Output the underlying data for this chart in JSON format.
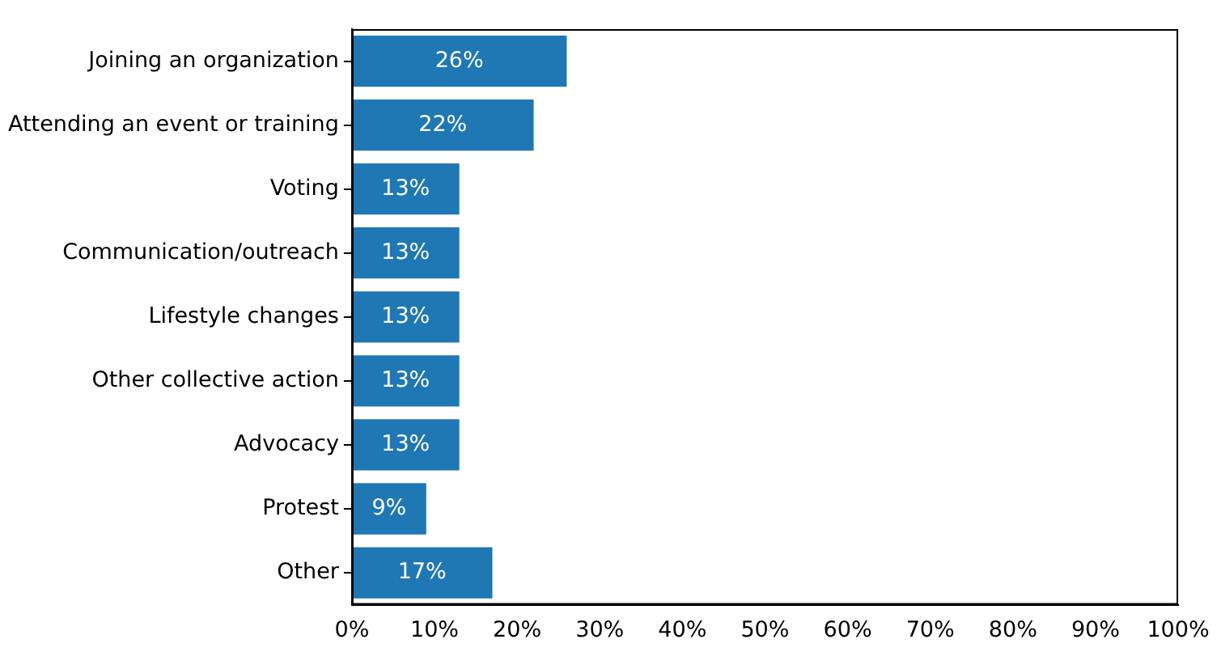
{
  "chart_data": {
    "type": "bar",
    "orientation": "horizontal",
    "categories": [
      "Joining an organization",
      "Attending an event or training",
      "Voting",
      "Communication/outreach",
      "Lifestyle changes",
      "Other collective action",
      "Advocacy",
      "Protest",
      "Other"
    ],
    "values": [
      26,
      22,
      13,
      13,
      13,
      13,
      13,
      9,
      17
    ],
    "value_labels": [
      "26%",
      "22%",
      "13%",
      "13%",
      "13%",
      "13%",
      "13%",
      "9%",
      "17%"
    ],
    "color": "#1f77b4",
    "xlim": [
      0,
      100
    ],
    "xticks": [
      {
        "value": 0,
        "label": "0%"
      },
      {
        "value": 10,
        "label": "10%"
      },
      {
        "value": 20,
        "label": "20%"
      },
      {
        "value": 30,
        "label": "30%"
      },
      {
        "value": 40,
        "label": "40%"
      },
      {
        "value": 50,
        "label": "50%"
      },
      {
        "value": 60,
        "label": "60%"
      },
      {
        "value": 70,
        "label": "70%"
      },
      {
        "value": 80,
        "label": "80%"
      },
      {
        "value": 90,
        "label": "90%"
      },
      {
        "value": 100,
        "label": "100%"
      }
    ],
    "grid": false,
    "legend": false
  }
}
